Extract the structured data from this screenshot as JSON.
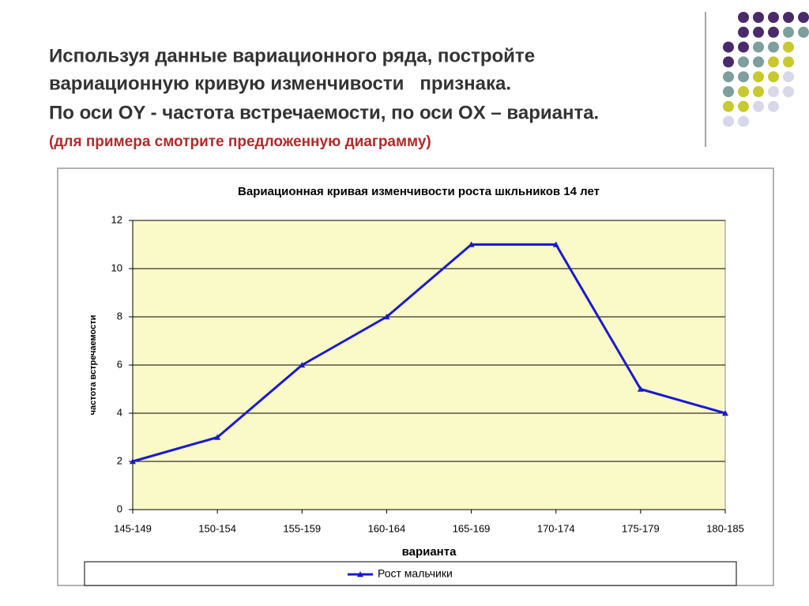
{
  "slide": {
    "lines": [
      "Используя данные вариационного ряда, постройте",
      "вариационную кривую изменчивости   признака.",
      "По оси OY - частота встречаемости, по оси OX – варианта."
    ],
    "note": "(для примера смотрите предложенную диаграмму)"
  },
  "chart_data": {
    "type": "line",
    "title": "Вариационная кривая изменчивости роста шкльников 14 лет",
    "x_label": "варианта",
    "y_label": "частота встречаемости",
    "categories": [
      "145-149",
      "150-154",
      "155-159",
      "160-164",
      "165-169",
      "170-174",
      "175-179",
      "180-185"
    ],
    "series": [
      {
        "name": "Рост мальчики",
        "color": "#1a1ad0",
        "values": [
          2,
          3,
          6,
          8,
          11,
          11,
          5,
          4
        ]
      }
    ],
    "ylim": [
      0,
      12
    ],
    "yticks": [
      0,
      2,
      4,
      6,
      8,
      10,
      12
    ],
    "grid": true,
    "plot_background": "#fafac8"
  }
}
